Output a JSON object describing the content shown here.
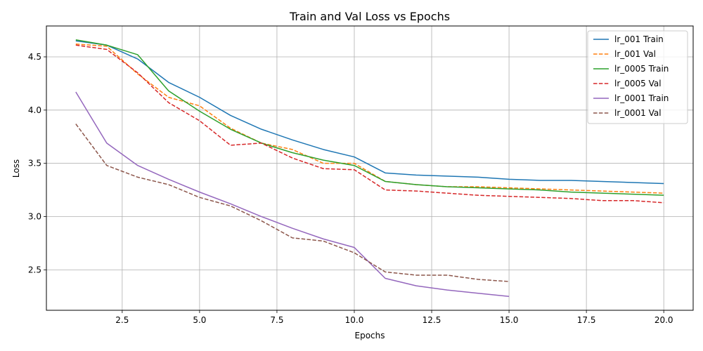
{
  "chart_data": {
    "type": "line",
    "title": "Train and Val Loss vs Epochs",
    "xlabel": "Epochs",
    "ylabel": "Loss",
    "xlim": [
      0.05,
      20.95
    ],
    "ylim": [
      2.12,
      4.79
    ],
    "x_ticks": [
      2.5,
      5.0,
      7.5,
      10.0,
      12.5,
      15.0,
      17.5,
      20.0
    ],
    "x_tick_labels": [
      "2.5",
      "5.0",
      "7.5",
      "10.0",
      "12.5",
      "15.0",
      "17.5",
      "20.0"
    ],
    "y_ticks": [
      2.5,
      3.0,
      3.5,
      4.0,
      4.5
    ],
    "y_tick_labels": [
      "2.5",
      "3.0",
      "3.5",
      "4.0",
      "4.5"
    ],
    "grid": true,
    "legend_position": "top-right",
    "series": [
      {
        "name": "lr_001 Train",
        "color": "#1f77b4",
        "dash": "solid",
        "x": [
          1,
          2,
          3,
          4,
          5,
          6,
          7,
          8,
          9,
          10,
          11,
          12,
          13,
          14,
          15,
          16,
          17,
          18,
          19,
          20
        ],
        "y": [
          4.65,
          4.61,
          4.48,
          4.26,
          4.12,
          3.95,
          3.82,
          3.72,
          3.63,
          3.56,
          3.41,
          3.39,
          3.38,
          3.37,
          3.35,
          3.34,
          3.34,
          3.33,
          3.32,
          3.31
        ]
      },
      {
        "name": "lr_001 Val",
        "color": "#ff7f0e",
        "dash": "dashed",
        "x": [
          1,
          2,
          3,
          4,
          5,
          6,
          7,
          8,
          9,
          10,
          11,
          12,
          13,
          14,
          15,
          16,
          17,
          18,
          19,
          20
        ],
        "y": [
          4.62,
          4.6,
          4.34,
          4.12,
          4.04,
          3.83,
          3.69,
          3.63,
          3.5,
          3.5,
          3.33,
          3.3,
          3.28,
          3.28,
          3.27,
          3.26,
          3.25,
          3.24,
          3.23,
          3.22
        ]
      },
      {
        "name": "lr_0005 Train",
        "color": "#2ca02c",
        "dash": "solid",
        "x": [
          1,
          2,
          3,
          4,
          5,
          6,
          7,
          8,
          9,
          10,
          11,
          12,
          13,
          14,
          15,
          16,
          17,
          18,
          19,
          20
        ],
        "y": [
          4.66,
          4.61,
          4.52,
          4.18,
          3.99,
          3.82,
          3.69,
          3.6,
          3.53,
          3.48,
          3.33,
          3.3,
          3.28,
          3.27,
          3.26,
          3.25,
          3.23,
          3.22,
          3.21,
          3.2
        ]
      },
      {
        "name": "lr_0005 Val",
        "color": "#d62728",
        "dash": "dashed",
        "x": [
          1,
          2,
          3,
          4,
          5,
          6,
          7,
          8,
          9,
          10,
          11,
          12,
          13,
          14,
          15,
          16,
          17,
          18,
          19,
          20
        ],
        "y": [
          4.61,
          4.57,
          4.35,
          4.07,
          3.9,
          3.67,
          3.69,
          3.55,
          3.45,
          3.44,
          3.25,
          3.24,
          3.22,
          3.2,
          3.19,
          3.18,
          3.17,
          3.15,
          3.15,
          3.13
        ]
      },
      {
        "name": "lr_0001 Train",
        "color": "#9467bd",
        "dash": "solid",
        "x": [
          1,
          2,
          3,
          4,
          5,
          6,
          7,
          8,
          9,
          10,
          11,
          12,
          13,
          14,
          15
        ],
        "y": [
          4.17,
          3.69,
          3.48,
          3.35,
          3.23,
          3.12,
          3.0,
          2.89,
          2.79,
          2.71,
          2.42,
          2.35,
          2.31,
          2.28,
          2.25
        ]
      },
      {
        "name": "lr_0001 Val",
        "color": "#8c564b",
        "dash": "dashed",
        "x": [
          1,
          2,
          3,
          4,
          5,
          6,
          7,
          8,
          9,
          10,
          11,
          12,
          13,
          14,
          15
        ],
        "y": [
          3.87,
          3.48,
          3.37,
          3.3,
          3.18,
          3.1,
          2.96,
          2.8,
          2.77,
          2.66,
          2.48,
          2.45,
          2.45,
          2.41,
          2.39
        ]
      }
    ]
  }
}
